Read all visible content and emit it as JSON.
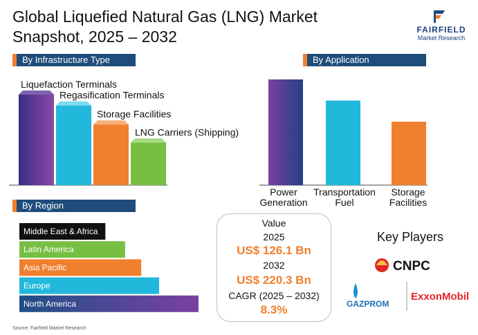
{
  "header": {
    "title_line1": "Global Liquefied Natural Gas (LNG) Market",
    "title_line2": "Snapshot, 2025 – 2032"
  },
  "logo": {
    "line1": "FAIRFIELD",
    "line2": "Market Research"
  },
  "sections": {
    "infrastructure": "By Infrastructure Type",
    "application": "By Application",
    "region": "By Region"
  },
  "chart_data": [
    {
      "type": "bar",
      "categories": [
        "Liquefaction Terminals",
        "Regasification Terminals",
        "Storage Facilities",
        "LNG Carriers (Shipping)"
      ],
      "values": [
        100,
        88,
        67,
        47
      ],
      "colors": [
        "#6a3f9f",
        "#22b8dc",
        "#f07f2e",
        "#77bf43"
      ],
      "ylim": [
        0,
        100
      ]
    },
    {
      "type": "bar",
      "categories": [
        "Power Generation",
        "Transportation Fuel",
        "Storage Facilities"
      ],
      "category_lines": [
        [
          "Power",
          "Generation"
        ],
        [
          "Transportation",
          "Fuel"
        ],
        [
          "Storage",
          "Facilities"
        ]
      ],
      "values": [
        100,
        80,
        60
      ],
      "colors": [
        "#6a3f9f",
        "#22b8dc",
        "#f07f2e"
      ],
      "ylim": [
        0,
        100
      ]
    },
    {
      "type": "bar",
      "orientation": "horizontal",
      "categories": [
        "Middle East & Africa",
        "Latin America",
        "Asia Pacific",
        "Europe",
        "North America"
      ],
      "values": [
        48,
        59,
        68,
        78,
        100
      ],
      "colors": [
        "#111111",
        "#77bf43",
        "#f07f2e",
        "#22b8dc",
        "#6a3f9f"
      ],
      "xlim": [
        0,
        100
      ]
    }
  ],
  "value_box": {
    "value_label": "Value",
    "year_2025": "2025",
    "value_2025": "US$ 126.1 Bn",
    "year_2032": "2032",
    "value_2032": "US$ 220.3 Bn",
    "cagr_label": "CAGR (2025 – 2032)",
    "cagr_value": "8.3%"
  },
  "key_players": {
    "title": "Key Players",
    "players": [
      "CNPC",
      "GAZPROM",
      "ExxonMobil"
    ]
  },
  "source": "Source: Fairfield Market Research"
}
